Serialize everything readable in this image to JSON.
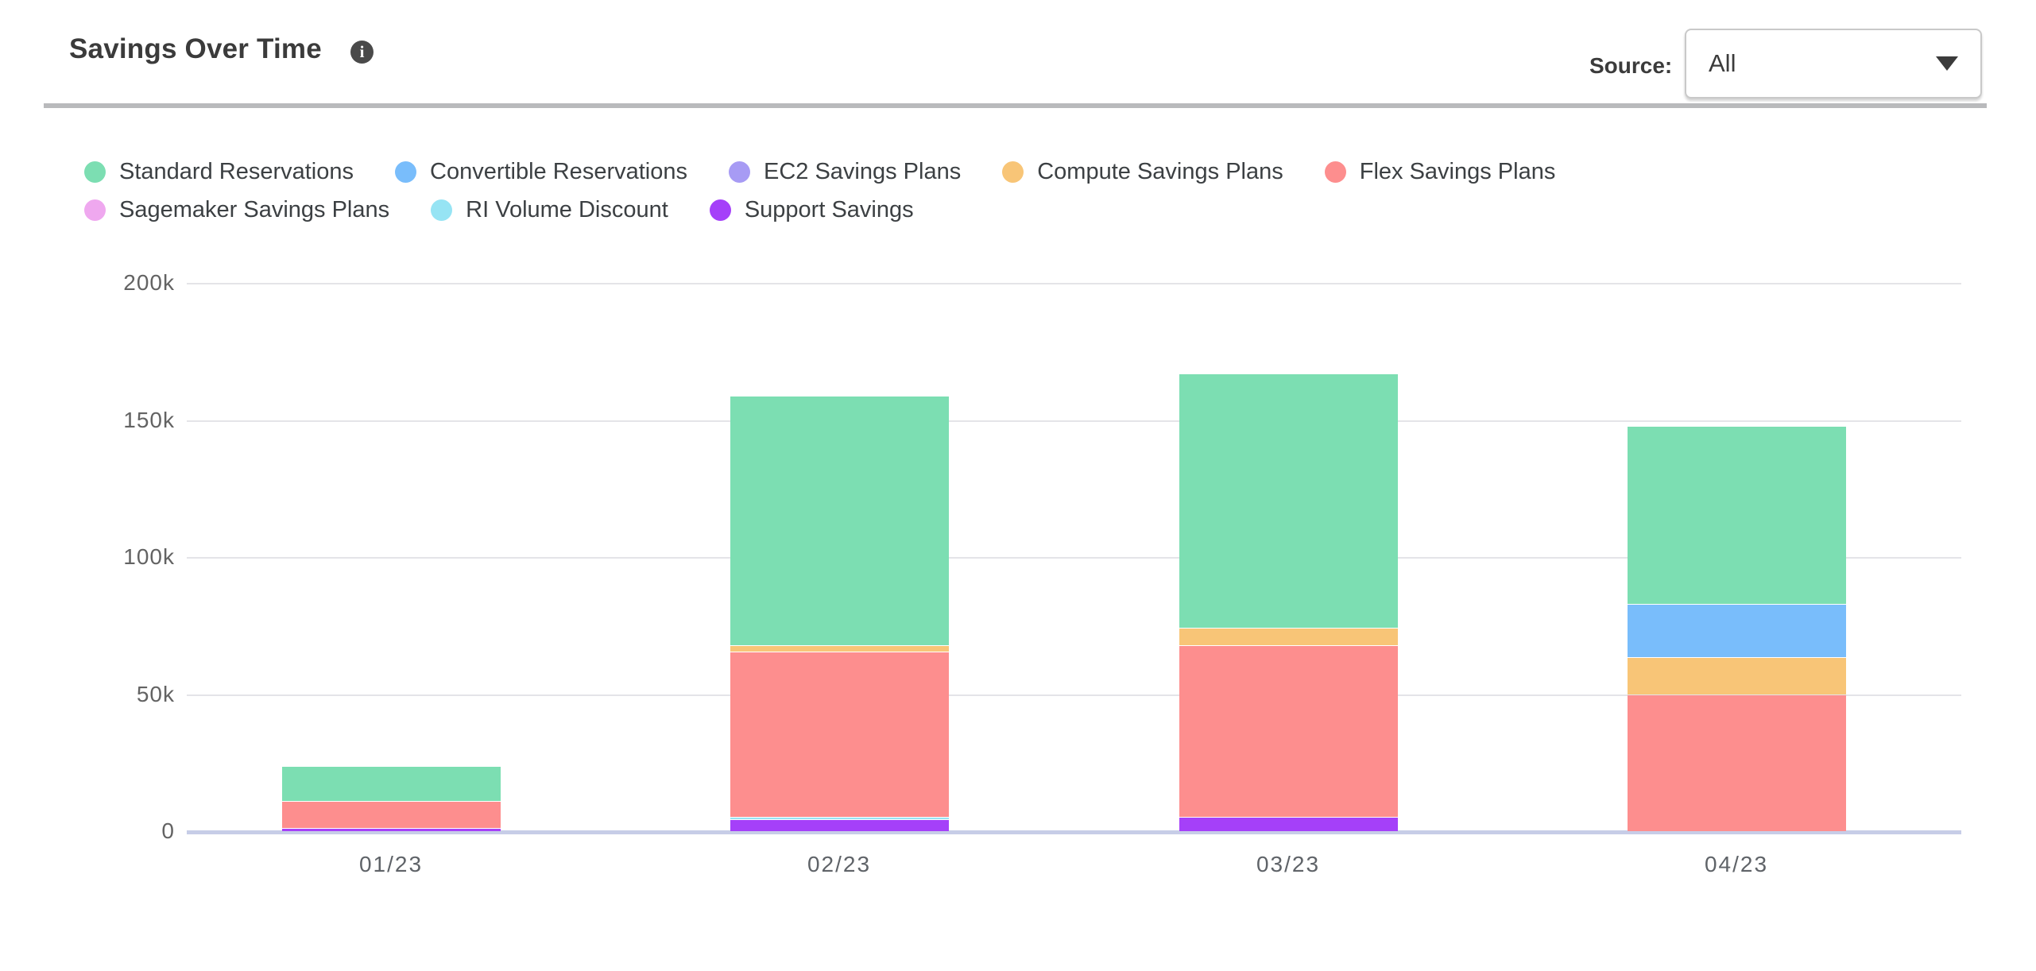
{
  "header": {
    "title": "Savings Over Time",
    "info_icon": "i",
    "source_label": "Source:",
    "source_value": "All"
  },
  "chart_data": {
    "type": "bar",
    "stacked": true,
    "title": "Savings Over Time",
    "categories": [
      "01/23",
      "02/23",
      "03/23",
      "04/23"
    ],
    "value_unit": "k",
    "ylim": [
      0,
      200
    ],
    "yticks": [
      {
        "label": "200k",
        "value": 200
      },
      {
        "label": "150k",
        "value": 150
      },
      {
        "label": "100k",
        "value": 100
      },
      {
        "label": "50k",
        "value": 50
      },
      {
        "label": "0",
        "value": 0
      }
    ],
    "grid": true,
    "legend_position": "top",
    "stack_note": "stacked bottom-to-top in reverse legend order (Support Savings at bottom, Standard Reservations on top)",
    "series": [
      {
        "name": "Standard Reservations",
        "color": "#7CDEB2",
        "values": [
          12.6,
          91.0,
          93.0,
          65.0
        ]
      },
      {
        "name": "Convertible Reservations",
        "color": "#79BDFB",
        "values": [
          0,
          0,
          0,
          19.3
        ]
      },
      {
        "name": "EC2 Savings Plans",
        "color": "#A79BF4",
        "values": [
          0,
          0,
          0,
          0
        ]
      },
      {
        "name": "Compute Savings Plans",
        "color": "#F8C577",
        "values": [
          0,
          2.3,
          6.4,
          13.8
        ]
      },
      {
        "name": "Flex Savings Plans",
        "color": "#FD8E8E",
        "values": [
          10.0,
          60.4,
          62.5,
          49.8
        ]
      },
      {
        "name": "Sagemaker Savings Plans",
        "color": "#EFA8EF",
        "values": [
          0,
          0,
          0,
          0
        ]
      },
      {
        "name": "RI Volume Discount",
        "color": "#96E4F4",
        "values": [
          0,
          0.8,
          0,
          0
        ]
      },
      {
        "name": "Support Savings",
        "color": "#A540F9",
        "values": [
          1.1,
          4.4,
          5.2,
          0
        ]
      }
    ],
    "totals": [
      23.7,
      158.9,
      167.1,
      147.9
    ]
  }
}
